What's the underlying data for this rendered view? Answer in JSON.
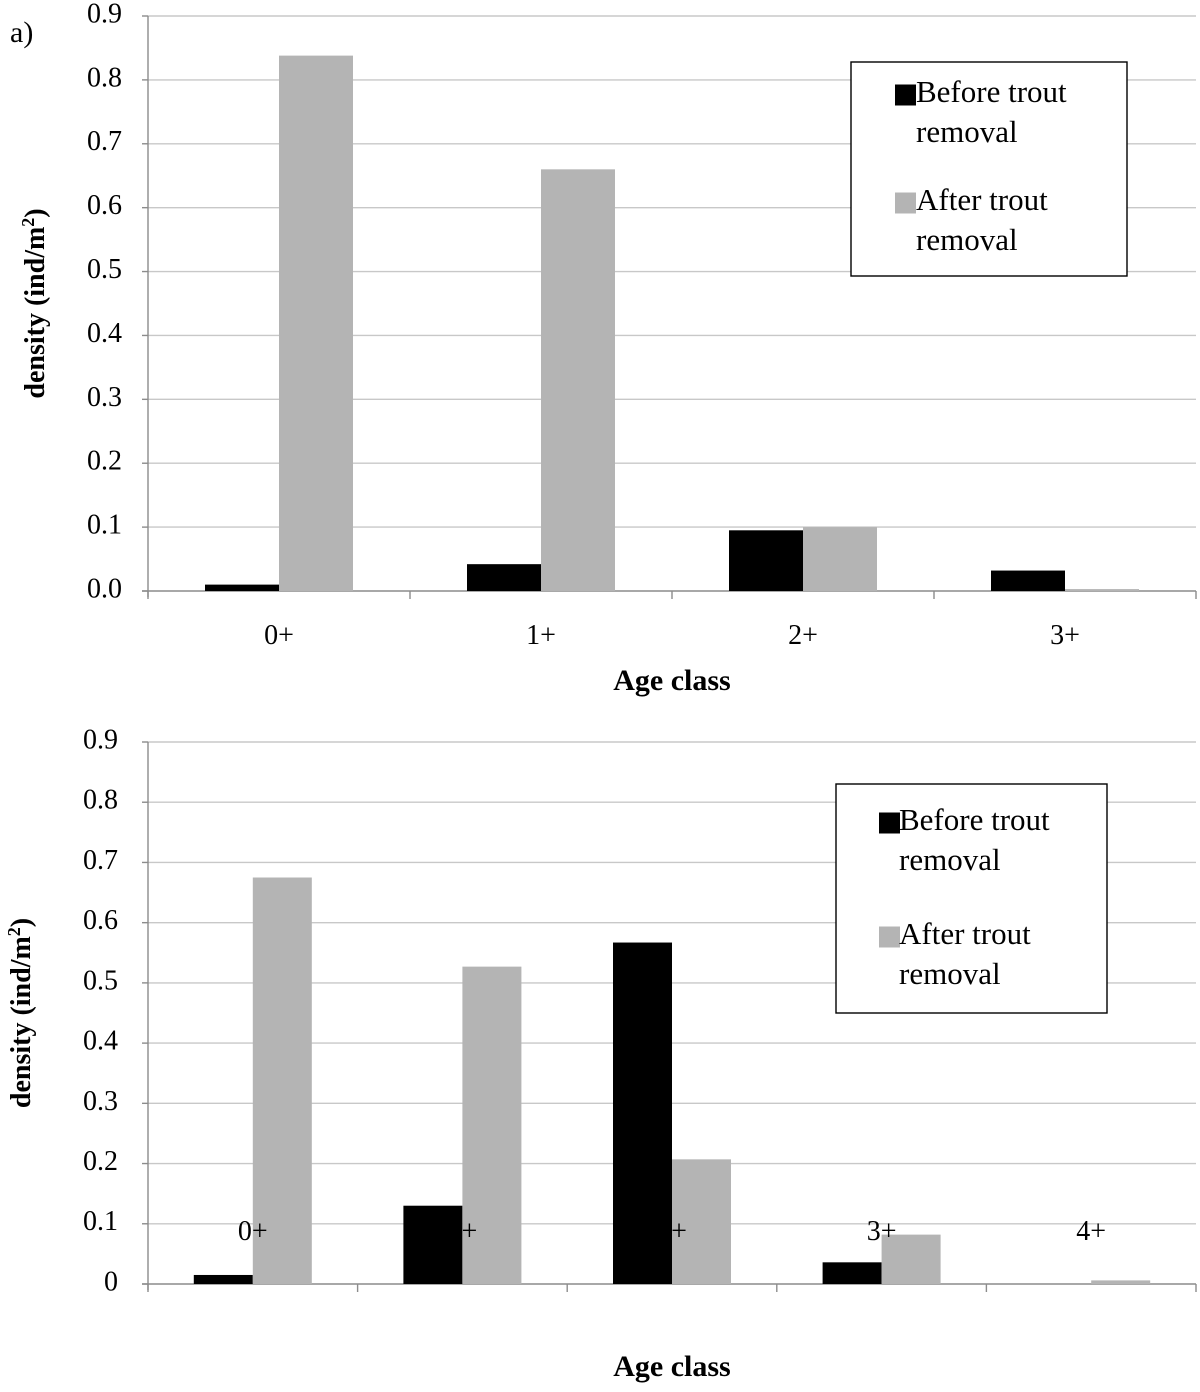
{
  "chart_data": [
    {
      "type": "bar",
      "panel_label": "a)",
      "categories": [
        "0+",
        "1+",
        "2+",
        "3+"
      ],
      "series": [
        {
          "name": "Before trout removal",
          "values": [
            0.01,
            0.042,
            0.095,
            0.032
          ]
        },
        {
          "name": "After trout removal",
          "values": [
            0.838,
            0.66,
            0.1,
            0.003
          ]
        }
      ],
      "legend_lines": [
        [
          "Before trout",
          "removal"
        ],
        [
          "After trout",
          "removal"
        ]
      ],
      "xlabel": "Age class",
      "ylabel_main": "density (ind/m",
      "ylabel_sup": "2",
      "ylabel_close": ")",
      "ylim": [
        0,
        0.9
      ],
      "yticks": [
        "0.0",
        "0.1",
        "0.2",
        "0.3",
        "0.4",
        "0.5",
        "0.6",
        "0.7",
        "0.8",
        "0.9"
      ],
      "grid": true,
      "legend_position": "top-right",
      "colors": {
        "before": "#000000",
        "after": "#b4b4b4"
      }
    },
    {
      "type": "bar",
      "panel_label": "",
      "categories": [
        "0+",
        "1+",
        "2+",
        "3+",
        "4+"
      ],
      "series": [
        {
          "name": "Before trout removal",
          "values": [
            0.015,
            0.13,
            0.567,
            0.036,
            0.0
          ]
        },
        {
          "name": "After trout removal",
          "values": [
            0.675,
            0.527,
            0.207,
            0.082,
            0.006
          ]
        }
      ],
      "legend_lines": [
        [
          "Before trout",
          "removal"
        ],
        [
          "After trout",
          "removal"
        ]
      ],
      "xlabel": "Age class",
      "ylabel_main": "density (ind/m",
      "ylabel_sup": "2",
      "ylabel_close": ")",
      "ylim": [
        0,
        0.9
      ],
      "yticks": [
        "0",
        "0.1",
        "0.2",
        "0.3",
        "0.4",
        "0.5",
        "0.6",
        "0.7",
        "0.8",
        "0.9"
      ],
      "grid": true,
      "legend_position": "top-right",
      "colors": {
        "before": "#000000",
        "after": "#b4b4b4"
      }
    }
  ]
}
